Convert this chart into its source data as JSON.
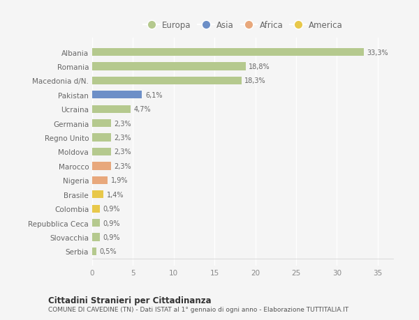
{
  "countries": [
    "Albania",
    "Romania",
    "Macedonia d/N.",
    "Pakistan",
    "Ucraina",
    "Germania",
    "Regno Unito",
    "Moldova",
    "Marocco",
    "Nigeria",
    "Brasile",
    "Colombia",
    "Repubblica Ceca",
    "Slovacchia",
    "Serbia"
  ],
  "values": [
    33.3,
    18.8,
    18.3,
    6.1,
    4.7,
    2.3,
    2.3,
    2.3,
    2.3,
    1.9,
    1.4,
    0.9,
    0.9,
    0.9,
    0.5
  ],
  "labels": [
    "33,3%",
    "18,8%",
    "18,3%",
    "6,1%",
    "4,7%",
    "2,3%",
    "2,3%",
    "2,3%",
    "2,3%",
    "1,9%",
    "1,4%",
    "0,9%",
    "0,9%",
    "0,9%",
    "0,5%"
  ],
  "continents": [
    "Europa",
    "Europa",
    "Europa",
    "Asia",
    "Europa",
    "Europa",
    "Europa",
    "Europa",
    "Africa",
    "Africa",
    "America",
    "America",
    "Europa",
    "Europa",
    "Europa"
  ],
  "continent_colors": {
    "Europa": "#b5c98e",
    "Asia": "#6d8fc7",
    "Africa": "#e8a87c",
    "America": "#e8c84a"
  },
  "legend_order": [
    "Europa",
    "Asia",
    "Africa",
    "America"
  ],
  "title": "Cittadini Stranieri per Cittadinanza",
  "subtitle": "COMUNE DI CAVEDINE (TN) - Dati ISTAT al 1° gennaio di ogni anno - Elaborazione TUTTITALIA.IT",
  "xlim": [
    0,
    37
  ],
  "xticks": [
    0,
    5,
    10,
    15,
    20,
    25,
    30,
    35
  ],
  "background_color": "#f5f5f5",
  "grid_color": "#ffffff",
  "bar_height": 0.55
}
